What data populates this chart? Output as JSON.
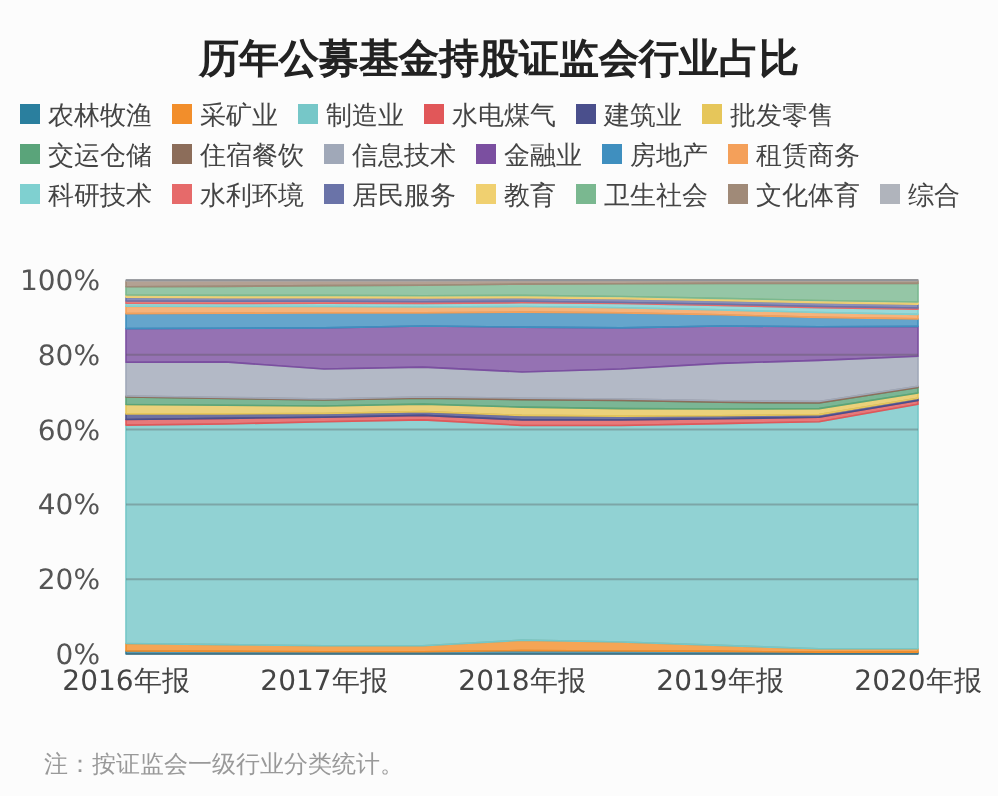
{
  "chart_data": {
    "type": "area",
    "title": "历年公募基金持股证监会行业占比",
    "categories": [
      "2016年报",
      null,
      "2017年报",
      null,
      "2018年报",
      null,
      "2019年报",
      null,
      "2020年报"
    ],
    "stacked": true,
    "ylim": [
      0,
      100
    ],
    "yticks": [
      {
        "value": 0,
        "label": "0%"
      },
      {
        "value": 20,
        "label": "20%"
      },
      {
        "value": 40,
        "label": "40%"
      },
      {
        "value": 60,
        "label": "60%"
      },
      {
        "value": 80,
        "label": "80%"
      },
      {
        "value": 100,
        "label": "100%"
      }
    ],
    "grid": "y",
    "legend": "top",
    "series": [
      {
        "name": "农林牧渔",
        "color": "#2a7f9e",
        "values": [
          0.8,
          0.7,
          0.6,
          0.6,
          0.9,
          0.8,
          0.7,
          0.5,
          0.5
        ]
      },
      {
        "name": "采矿业",
        "color": "#f28e2b",
        "values": [
          2.0,
          1.8,
          1.6,
          1.6,
          2.8,
          2.4,
          1.6,
          0.9,
          0.9
        ]
      },
      {
        "name": "制造业",
        "color": "#76c7c8",
        "values": [
          58.4,
          59.0,
          59.9,
          60.4,
          57.4,
          57.9,
          59.3,
          60.7,
          65.4
        ]
      },
      {
        "name": "水电煤气",
        "color": "#e15759",
        "values": [
          1.5,
          1.5,
          1.2,
          1.2,
          1.5,
          1.5,
          1.3,
          1.2,
          1.0
        ]
      },
      {
        "name": "建筑业",
        "color": "#4a4f8c",
        "values": [
          1.5,
          1.2,
          1.0,
          1.0,
          1.2,
          1.0,
          0.8,
          0.7,
          0.6
        ]
      },
      {
        "name": "批发零售",
        "color": "#e6c65a",
        "values": [
          2.5,
          2.3,
          2.0,
          2.0,
          2.2,
          2.0,
          1.8,
          1.6,
          1.4
        ]
      },
      {
        "name": "交运仓储",
        "color": "#5aa47a",
        "values": [
          2.0,
          1.8,
          1.6,
          1.6,
          2.0,
          2.2,
          1.8,
          1.5,
          1.5
        ]
      },
      {
        "name": "住宿餐饮",
        "color": "#8c6d5a",
        "values": [
          0.3,
          0.3,
          0.3,
          0.3,
          0.4,
          0.4,
          0.4,
          0.4,
          0.3
        ]
      },
      {
        "name": "信息技术",
        "color": "#a0a8b8",
        "values": [
          9,
          9.5,
          8,
          8,
          7,
          8,
          10,
          11,
          8
        ]
      },
      {
        "name": "金融业",
        "color": "#7b4fa0",
        "values": [
          9,
          9,
          11,
          11,
          12,
          11,
          10,
          9,
          8
        ]
      },
      {
        "name": "房地产",
        "color": "#3f8fbf",
        "values": [
          4,
          4,
          4,
          3.5,
          4,
          4,
          3,
          2.5,
          2
        ]
      },
      {
        "name": "租赁商务",
        "color": "#f4a05a",
        "values": [
          2.0,
          1.8,
          1.7,
          1.6,
          1.5,
          1.4,
          1.3,
          1.3,
          1.2
        ]
      },
      {
        "name": "科研技术",
        "color": "#7fd0d0",
        "values": [
          0.8,
          0.8,
          0.9,
          0.9,
          1.0,
          1.1,
          1.2,
          1.3,
          1.4
        ]
      },
      {
        "name": "水利环境",
        "color": "#e66a6a",
        "values": [
          0.6,
          0.6,
          0.5,
          0.5,
          0.4,
          0.3,
          0.3,
          0.3,
          0.3
        ]
      },
      {
        "name": "居民服务",
        "color": "#6a73a8",
        "values": [
          1.0,
          1.0,
          1.0,
          1.0,
          1.0,
          1.0,
          1.0,
          1.0,
          1.0
        ]
      },
      {
        "name": "教育",
        "color": "#f0d070",
        "values": [
          0.6,
          0.6,
          0.6,
          0.6,
          0.6,
          0.6,
          0.6,
          0.6,
          0.6
        ]
      },
      {
        "name": "卫生社会",
        "color": "#7ab890",
        "values": [
          2.2,
          2.4,
          2.6,
          2.8,
          3.0,
          3.4,
          4.0,
          4.6,
          5.0
        ]
      },
      {
        "name": "文化体育",
        "color": "#a08a78",
        "values": [
          1.6,
          1.5,
          1.3,
          1.2,
          1.0,
          0.9,
          0.8,
          0.8,
          0.8
        ]
      },
      {
        "name": "综合",
        "color": "#b0b4bc",
        "values": [
          0.2,
          0.2,
          0.2,
          0.2,
          0.1,
          0.1,
          0.1,
          0.1,
          0.1
        ]
      }
    ],
    "annotations": [
      "注：按证监会一级行业分类统计。"
    ]
  }
}
